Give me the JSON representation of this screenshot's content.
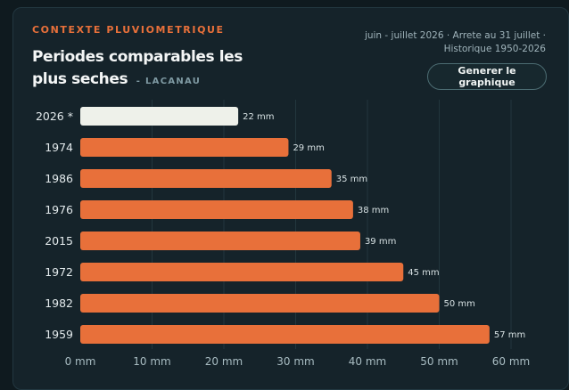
{
  "header": {
    "eyebrow": "CONTEXTE PLUVIOMETRIQUE",
    "title": "Periodes comparables les plus seches",
    "location": "- LACANAU",
    "meta": "juin - juillet 2026 · Arrete au 31 juillet · Historique 1950-2026",
    "button_label": "Generer le graphique"
  },
  "colors": {
    "accent": "#e8703a",
    "current_bar": "#eef1ea",
    "background": "#15232a"
  },
  "chart_data": {
    "type": "bar",
    "orientation": "horizontal",
    "categories": [
      "2026 *",
      "1974",
      "1986",
      "1976",
      "2015",
      "1972",
      "1982",
      "1959"
    ],
    "values": [
      22,
      29,
      35,
      38,
      39,
      45,
      50,
      57
    ],
    "value_labels": [
      "22 mm",
      "29 mm",
      "35 mm",
      "38 mm",
      "39 mm",
      "45 mm",
      "50 mm",
      "57 mm"
    ],
    "highlight_index": 0,
    "xlim": [
      0,
      60
    ],
    "xticks": [
      0,
      10,
      20,
      30,
      40,
      50,
      60
    ],
    "xtick_labels": [
      "0 mm",
      "10 mm",
      "20 mm",
      "30 mm",
      "40 mm",
      "50 mm",
      "60 mm"
    ],
    "grid": true,
    "title": "Periodes comparables les plus seches",
    "xlabel": "",
    "ylabel": ""
  }
}
